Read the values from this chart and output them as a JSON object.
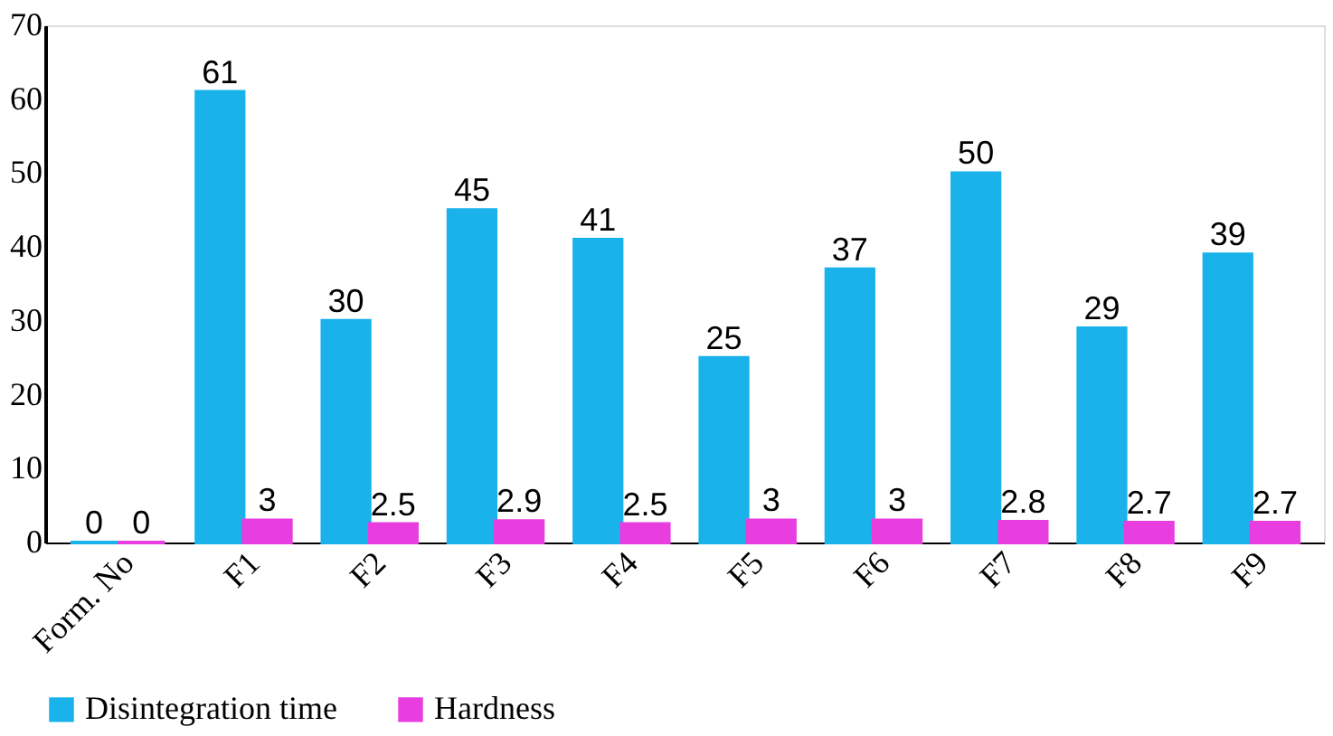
{
  "chart_data": {
    "type": "bar",
    "categories": [
      "Form. No",
      "F1",
      "F2",
      "F3",
      "F4",
      "F5",
      "F6",
      "F7",
      "F8",
      "F9"
    ],
    "series": [
      {
        "name": "Disintegration time",
        "color": "#1ab2ea",
        "values": [
          0,
          61,
          30,
          45,
          41,
          25,
          37,
          50,
          29,
          39
        ]
      },
      {
        "name": "Hardness",
        "color": "#e83ee0",
        "values": [
          0,
          3,
          2.5,
          2.9,
          2.5,
          3,
          3,
          2.8,
          2.7,
          2.7
        ]
      }
    ],
    "ylim": [
      0,
      70
    ],
    "yticks": [
      0,
      10,
      20,
      30,
      40,
      50,
      60,
      70
    ],
    "grid": false,
    "legend": "bottom",
    "data_labels": true
  }
}
